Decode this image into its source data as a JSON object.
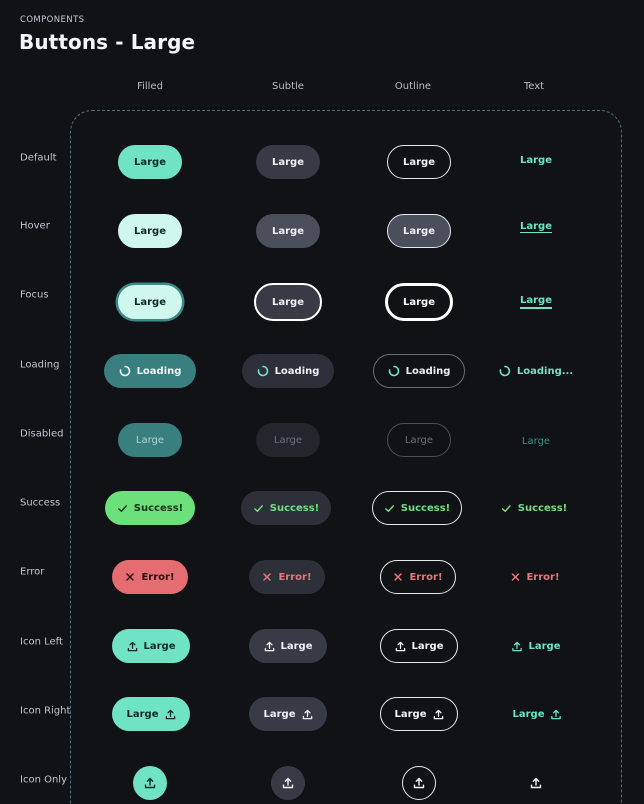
{
  "header": {
    "eyebrow": "COMPONENTS",
    "title": "Buttons - Large"
  },
  "columns": [
    "Filled",
    "Subtle",
    "Outline",
    "Text"
  ],
  "rows": [
    "Default",
    "Hover",
    "Focus",
    "Loading",
    "Disabled",
    "Success",
    "Error",
    "Icon Left",
    "Icon Right",
    "Icon Only"
  ],
  "labels": {
    "large": "Large",
    "loading": "Loading",
    "loading_text": "Loading...",
    "success": "Success!",
    "error": "Error!"
  },
  "colors": {
    "accent": "#6fe3c4",
    "success": "#6ce07a",
    "error": "#e56c70",
    "background": "#111216"
  }
}
